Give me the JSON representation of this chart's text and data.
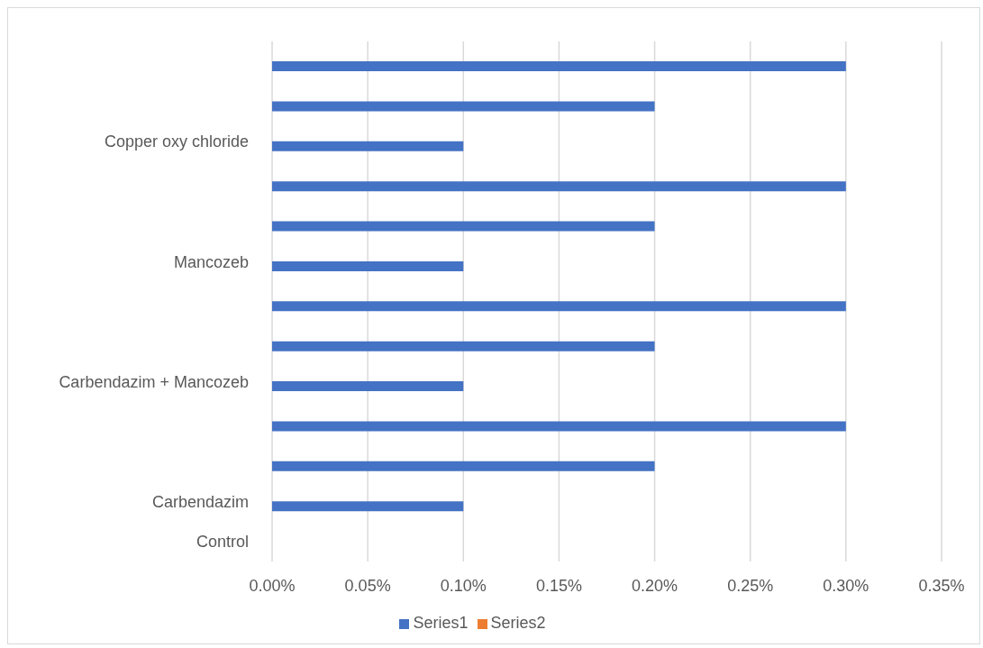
{
  "chart_data": {
    "type": "bar",
    "orientation": "horizontal",
    "categories": [
      null,
      null,
      "Copper oxy chloride",
      null,
      null,
      "Mancozeb",
      null,
      null,
      "Carbendazim + Mancozeb",
      null,
      null,
      "Carbendazim",
      "Control"
    ],
    "series": [
      {
        "name": "Series2",
        "color": "#ed7d31",
        "values": [
          null,
          null,
          null,
          null,
          null,
          null,
          null,
          null,
          null,
          null,
          null,
          null,
          null
        ]
      },
      {
        "name": "Series1",
        "color": "#4472c4",
        "values": [
          0.3,
          0.2,
          0.1,
          0.3,
          0.2,
          0.1,
          0.3,
          0.2,
          0.1,
          0.3,
          0.2,
          0.1,
          null
        ]
      }
    ],
    "xlim": [
      0,
      0.35
    ],
    "xticks": [
      {
        "value": 0,
        "label": "0.00%"
      },
      {
        "value": 0.05,
        "label": "0.05%"
      },
      {
        "value": 0.1,
        "label": "0.10%"
      },
      {
        "value": 0.15,
        "label": "0.15%"
      },
      {
        "value": 0.2,
        "label": "0.20%"
      },
      {
        "value": 0.25,
        "label": "0.25%"
      },
      {
        "value": 0.3,
        "label": "0.30%"
      },
      {
        "value": 0.35,
        "label": "0.35%"
      }
    ],
    "grid": "x",
    "legend": "bottom"
  }
}
